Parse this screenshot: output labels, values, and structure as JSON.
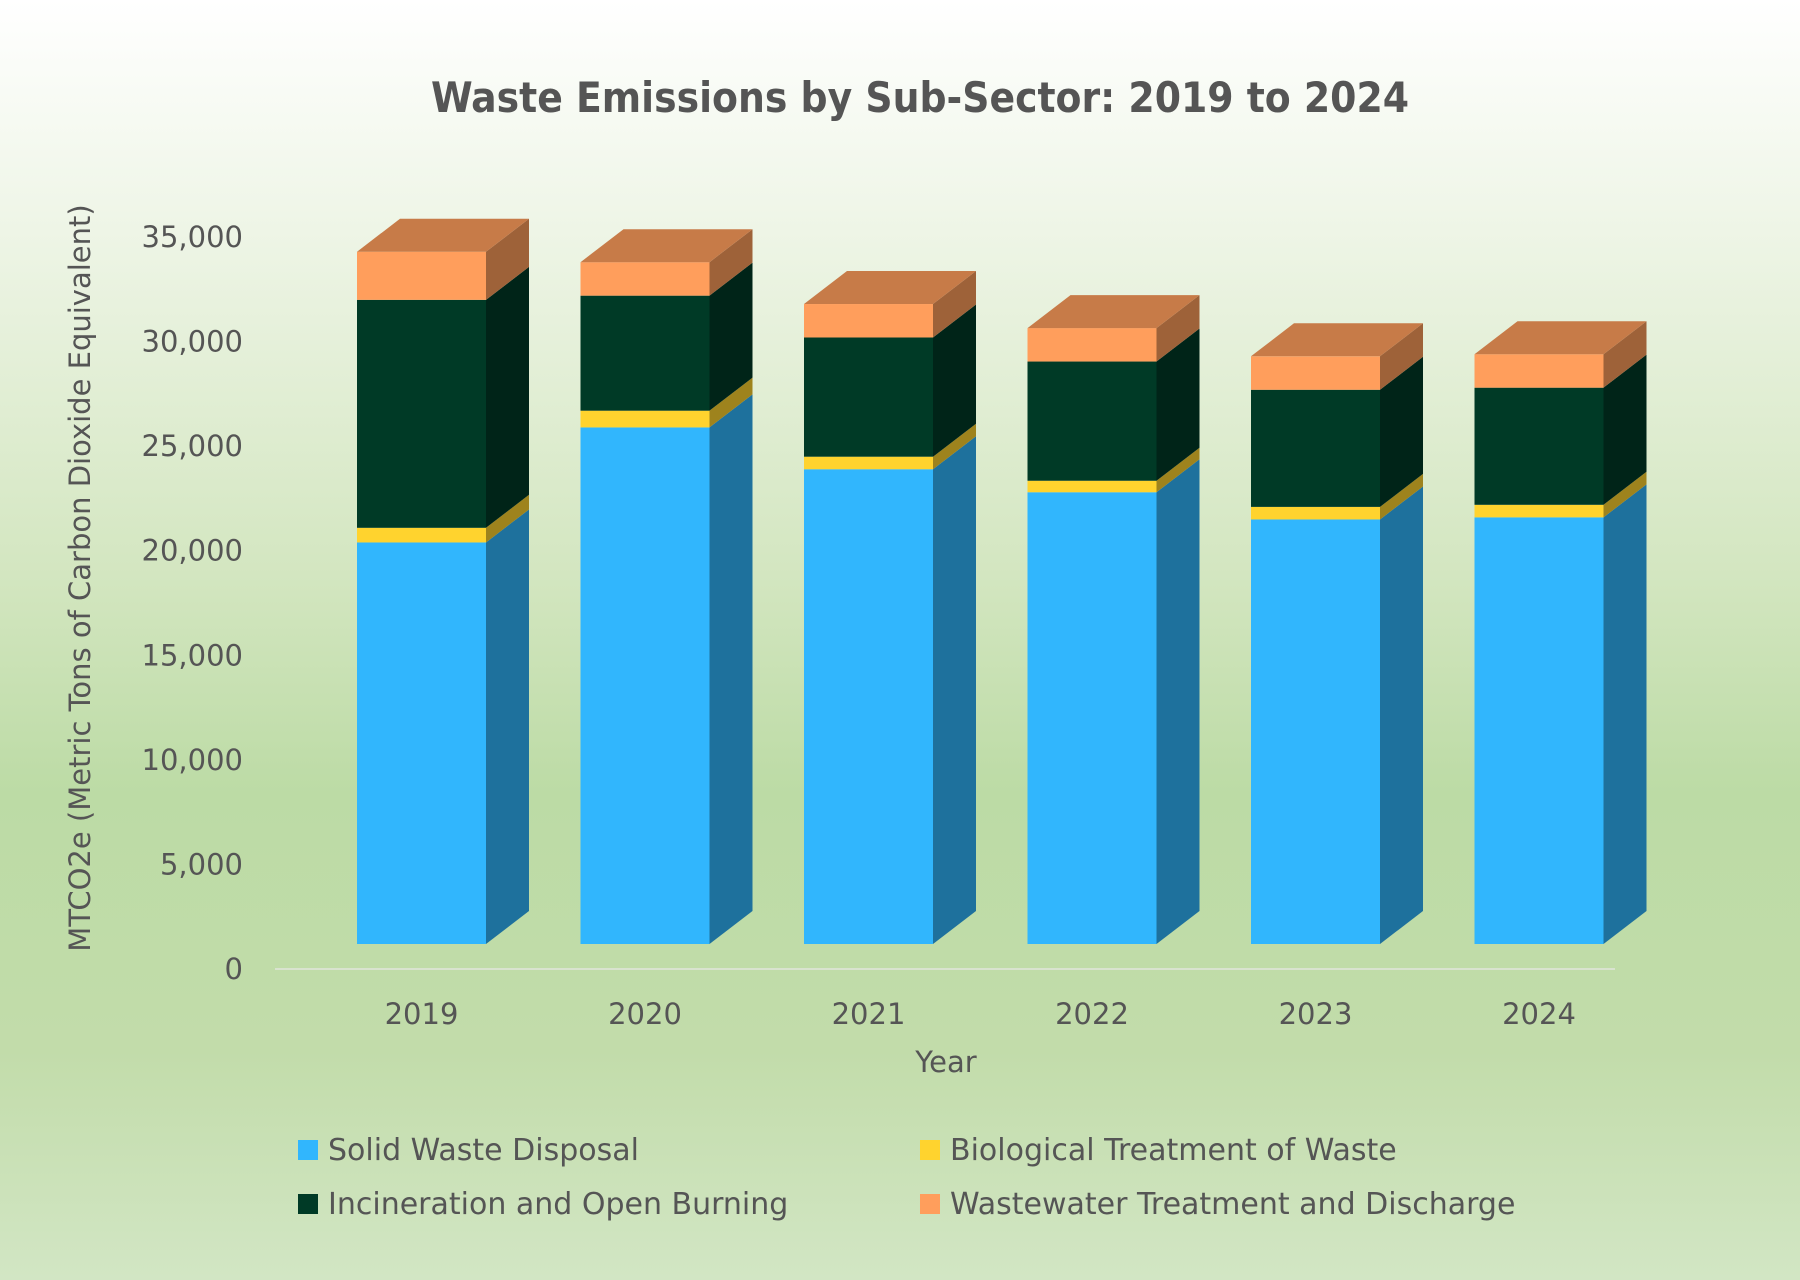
{
  "chart_data": {
    "type": "bar",
    "stacked": true,
    "style": "3d",
    "title": "Waste Emissions by Sub-Sector: 2019 to 2024",
    "xlabel": "Year",
    "ylabel": "MTCO2e (Metric Tons of Carbon Dioxide Equivalent)",
    "categories": [
      "2019",
      "2020",
      "2021",
      "2022",
      "2023",
      "2024"
    ],
    "ylim": [
      0,
      35000
    ],
    "yticks": [
      0,
      5000,
      10000,
      15000,
      20000,
      25000,
      30000,
      35000
    ],
    "ytick_labels": [
      "0",
      "5,000",
      "10,000",
      "15,000",
      "20,000",
      "25,000",
      "30,000",
      "35,000"
    ],
    "legend_position": "bottom",
    "series": [
      {
        "name": "Solid Waste Disposal",
        "color": "#31B6FD",
        "values": [
          19200,
          24700,
          22700,
          21600,
          20300,
          20400
        ]
      },
      {
        "name": "Biological Treatment of Waste",
        "color": "#FFD32E",
        "values": [
          700,
          800,
          600,
          550,
          600,
          600
        ]
      },
      {
        "name": "Incineration and Open Burning",
        "color": "#003A26",
        "values": [
          10900,
          5500,
          5700,
          5700,
          5600,
          5600
        ]
      },
      {
        "name": "Wastewater Treatment and Discharge",
        "color": "#FF9E5C",
        "values": [
          2300,
          1600,
          1600,
          1600,
          1600,
          1600
        ]
      }
    ]
  }
}
